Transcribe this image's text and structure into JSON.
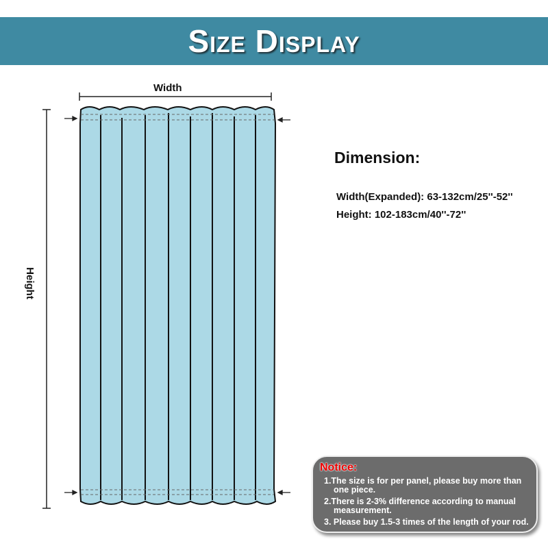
{
  "header": {
    "title": "Size Display"
  },
  "diagram": {
    "width_label": "Width",
    "height_label": "Height",
    "curtain_color": "#acd9e6"
  },
  "dimension": {
    "title": "Dimension:",
    "width": "Width(Expanded): 63-132cm/25''-52''",
    "height": "Height: 102-183cm/40''-72''"
  },
  "notice": {
    "title": "Notice:",
    "items": [
      "1.The size is for per panel, please buy more than one piece.",
      "2.There is 2-3% difference according to manual measurement.",
      "3. Please buy 1.5-3 times of the length of your rod."
    ]
  },
  "colors": {
    "header": "#3f8aa2",
    "notice_bg": "#6c6c6c",
    "notice_title": "#e00000"
  }
}
